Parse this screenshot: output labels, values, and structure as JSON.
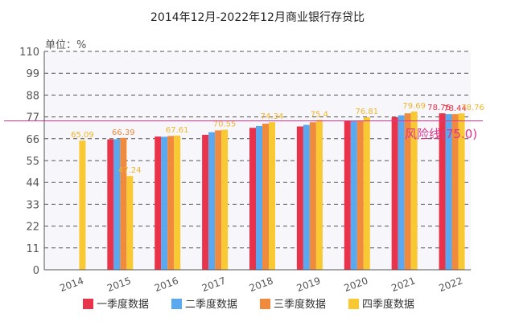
{
  "chart_data": {
    "type": "bar",
    "title": "2014年12月-2022年12月商业银行存贷比",
    "ylabel": "单位：%",
    "ylim": [
      0,
      110
    ],
    "yticks": [
      0,
      11,
      22,
      33,
      44,
      55,
      66,
      77,
      88,
      99,
      110
    ],
    "categories": [
      "2014",
      "2015",
      "2016",
      "2017",
      "2018",
      "2019",
      "2020",
      "2021",
      "2022"
    ],
    "series": [
      {
        "name": "一季度数据",
        "color": "#e8334a",
        "values": [
          null,
          65.7,
          67.1,
          68.0,
          71.5,
          72.2,
          75.0,
          76.9,
          78.8
        ]
      },
      {
        "name": "二季度数据",
        "color": "#5aa8f0",
        "values": [
          null,
          65.8,
          67.0,
          69.3,
          72.4,
          73.0,
          74.9,
          77.8,
          78.4
        ]
      },
      {
        "name": "三季度数据",
        "color": "#f08a3c",
        "values": [
          null,
          66.39,
          67.4,
          70.2,
          73.6,
          74.3,
          75.2,
          78.8,
          78.4
        ]
      },
      {
        "name": "四季度数据",
        "color": "#f8c933",
        "values": [
          65.09,
          47.24,
          67.61,
          70.55,
          74.34,
          75.4,
          76.81,
          79.69,
          78.76
        ]
      }
    ],
    "data_labels": [
      {
        "category": "2014",
        "series": "四季度数据",
        "text": "65.09"
      },
      {
        "category": "2015",
        "series": "三季度数据",
        "text": "66.39"
      },
      {
        "category": "2015",
        "series": "四季度数据",
        "text": "47.24"
      },
      {
        "category": "2016",
        "series": "四季度数据",
        "text": "67.61"
      },
      {
        "category": "2017",
        "series": "四季度数据",
        "text": "70.55"
      },
      {
        "category": "2018",
        "series": "四季度数据",
        "text": "74.34"
      },
      {
        "category": "2019",
        "series": "四季度数据",
        "text": "75.4"
      },
      {
        "category": "2020",
        "series": "四季度数据",
        "text": "76.81"
      },
      {
        "category": "2021",
        "series": "四季度数据",
        "text": "79.69"
      },
      {
        "category": "2022",
        "series": "一季度数据",
        "text": "78.76"
      },
      {
        "category": "2022",
        "series": "二季度数据",
        "text": "78.44"
      },
      {
        "category": "2022",
        "series": "四季度数据",
        "text": "78.76"
      }
    ],
    "reference_line": {
      "value": 75.0,
      "label": "风险线(75.0)",
      "color": "#e0338a"
    },
    "grid": true,
    "legend": "bottom"
  }
}
